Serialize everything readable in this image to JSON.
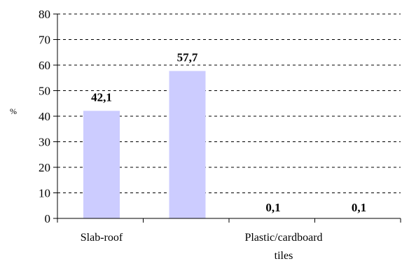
{
  "chart_data": {
    "type": "bar",
    "categories": [
      "Slab-roof",
      "",
      "Plastic/cardboard tiles",
      ""
    ],
    "values": [
      42.1,
      57.7,
      0.1,
      0.1
    ],
    "value_labels": [
      "42,1",
      "57,7",
      "0,1",
      "0,1"
    ],
    "ylabel": "%",
    "ylim": [
      0,
      80
    ],
    "yticks": [
      0,
      10,
      20,
      30,
      40,
      50,
      60,
      70,
      80
    ],
    "grid": true,
    "bar_color": "#ccccff",
    "legend": "none"
  }
}
